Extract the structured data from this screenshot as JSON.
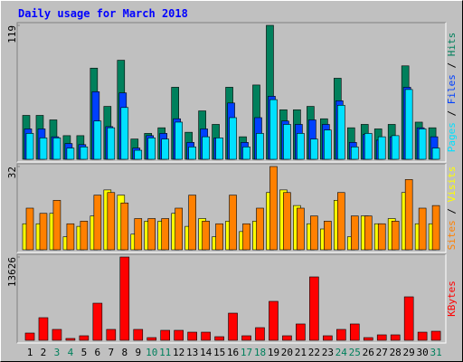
{
  "chart_data": [
    {
      "type": "bar",
      "title": "Daily usage for March 2018",
      "legend_separator": " / ",
      "ylim": [
        0,
        119
      ],
      "yticks": [
        119
      ],
      "series": [
        {
          "name": "Hits",
          "color": "#00805c",
          "values": [
            39,
            39,
            35,
            21,
            21,
            81,
            47,
            88,
            18,
            23,
            28,
            64,
            24,
            43,
            31,
            64,
            20,
            66,
            119,
            44,
            44,
            47,
            36,
            72,
            28,
            31,
            27,
            31,
            83,
            33,
            28
          ]
        },
        {
          "name": "Files",
          "color": "#0040ff",
          "values": [
            27,
            27,
            20,
            14,
            13,
            60,
            29,
            59,
            10,
            21,
            23,
            36,
            15,
            27,
            19,
            50,
            15,
            37,
            56,
            34,
            31,
            35,
            31,
            52,
            15,
            22,
            17,
            20,
            64,
            28,
            20
          ]
        },
        {
          "name": "Pages",
          "color": "#00e0ff",
          "values": [
            23,
            19,
            19,
            10,
            11,
            34,
            28,
            46,
            8,
            19,
            18,
            33,
            11,
            20,
            19,
            37,
            11,
            23,
            53,
            31,
            23,
            18,
            26,
            48,
            11,
            23,
            20,
            21,
            62,
            27,
            10
          ]
        }
      ]
    },
    {
      "type": "bar",
      "legend_separator": " / ",
      "ylim": [
        0,
        32
      ],
      "yticks": [
        32
      ],
      "series": [
        {
          "name": "Visits",
          "color": "#ffff00",
          "values": [
            10,
            10,
            14,
            5,
            9,
            13,
            23,
            21,
            6,
            11,
            11,
            14,
            9,
            12,
            5,
            11,
            7,
            11,
            22,
            23,
            17,
            10,
            8,
            19,
            5,
            13,
            10,
            12,
            22,
            10,
            10
          ]
        },
        {
          "name": "Sites",
          "color": "#ff8000",
          "values": [
            16,
            14,
            19,
            10,
            11,
            21,
            22,
            18,
            12,
            12,
            12,
            16,
            21,
            11,
            10,
            21,
            10,
            16,
            32,
            22,
            16,
            13,
            11,
            22,
            13,
            13,
            10,
            11,
            27,
            16,
            17
          ]
        }
      ]
    },
    {
      "type": "bar",
      "ylim": [
        0,
        13626
      ],
      "yticks": [
        13626
      ],
      "categories": [
        "1",
        "2",
        "3",
        "4",
        "5",
        "6",
        "7",
        "8",
        "9",
        "10",
        "11",
        "12",
        "13",
        "14",
        "15",
        "16",
        "17",
        "18",
        "19",
        "20",
        "21",
        "22",
        "23",
        "24",
        "25",
        "26",
        "27",
        "28",
        "29",
        "30",
        "31"
      ],
      "label_colors": [
        "#000000",
        "#000000",
        "#00805c",
        "#00805c",
        "#000000",
        "#000000",
        "#000000",
        "#000000",
        "#000000",
        "#00805c",
        "#00805c",
        "#000000",
        "#000000",
        "#000000",
        "#000000",
        "#000000",
        "#00805c",
        "#00805c",
        "#000000",
        "#000000",
        "#000000",
        "#000000",
        "#000000",
        "#00805c",
        "#00805c",
        "#000000",
        "#000000",
        "#000000",
        "#000000",
        "#000000",
        "#00805c"
      ],
      "series": [
        {
          "name": "KBytes",
          "color": "#ff0000",
          "values": [
            1185,
            3700,
            1780,
            300,
            740,
            6070,
            1780,
            13626,
            1780,
            440,
            1630,
            1630,
            1330,
            1330,
            590,
            4440,
            740,
            2070,
            6370,
            740,
            2670,
            10370,
            740,
            1780,
            2670,
            440,
            890,
            890,
            7110,
            1330,
            1480
          ]
        }
      ]
    }
  ]
}
